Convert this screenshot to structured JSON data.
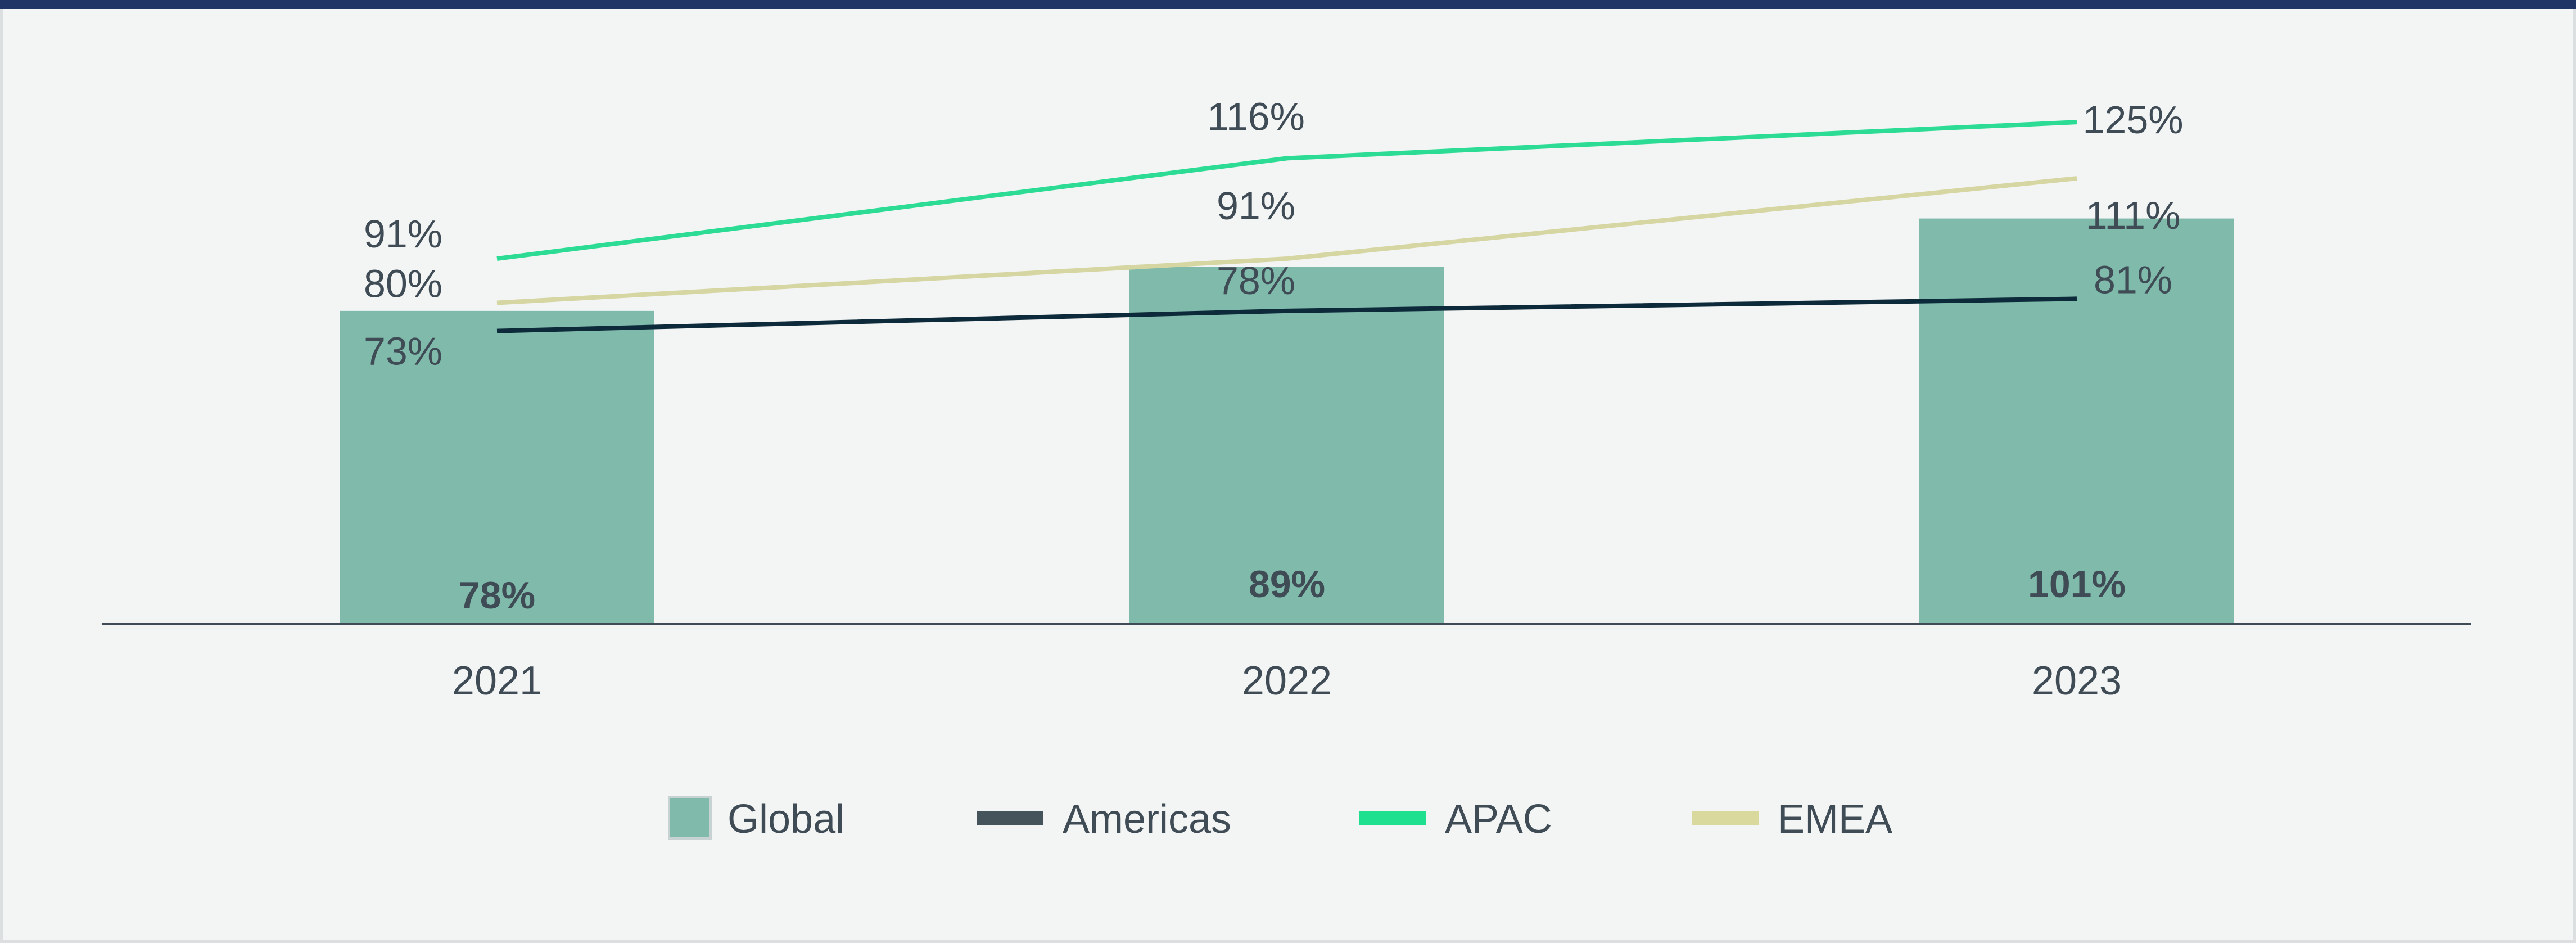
{
  "colors": {
    "background": "#f3f4f4",
    "top_bar": "#1f3566",
    "axis": "#3f4b55",
    "text": "#3f4b55",
    "bar_label": "#3f4b55"
  },
  "chart_data": {
    "type": "bar",
    "categories": [
      "2021",
      "2022",
      "2023"
    ],
    "ylim": [
      0,
      140
    ],
    "grid": false,
    "legend_position": "bottom",
    "series": [
      {
        "name": "Global",
        "kind": "bar",
        "color": "#7fbaab",
        "values": [
          78,
          89,
          101
        ],
        "labels": [
          "78%",
          "89%",
          "101%"
        ]
      },
      {
        "name": "Americas",
        "kind": "line",
        "color": "#0d2a3a",
        "legend_color": "#44545a",
        "values": [
          73,
          78,
          81
        ],
        "labels": [
          "73%",
          "78%",
          "81%"
        ]
      },
      {
        "name": "APAC",
        "kind": "line",
        "color": "#2cdc94",
        "legend_color": "#1ee08f",
        "values": [
          91,
          116,
          125
        ],
        "labels": [
          "91%",
          "116%",
          "125%"
        ]
      },
      {
        "name": "EMEA",
        "kind": "line",
        "color": "#d6d6a2",
        "legend_color": "#d9d99d",
        "values": [
          80,
          91,
          111
        ],
        "labels": [
          "80%",
          "91%",
          "111%"
        ]
      }
    ]
  }
}
